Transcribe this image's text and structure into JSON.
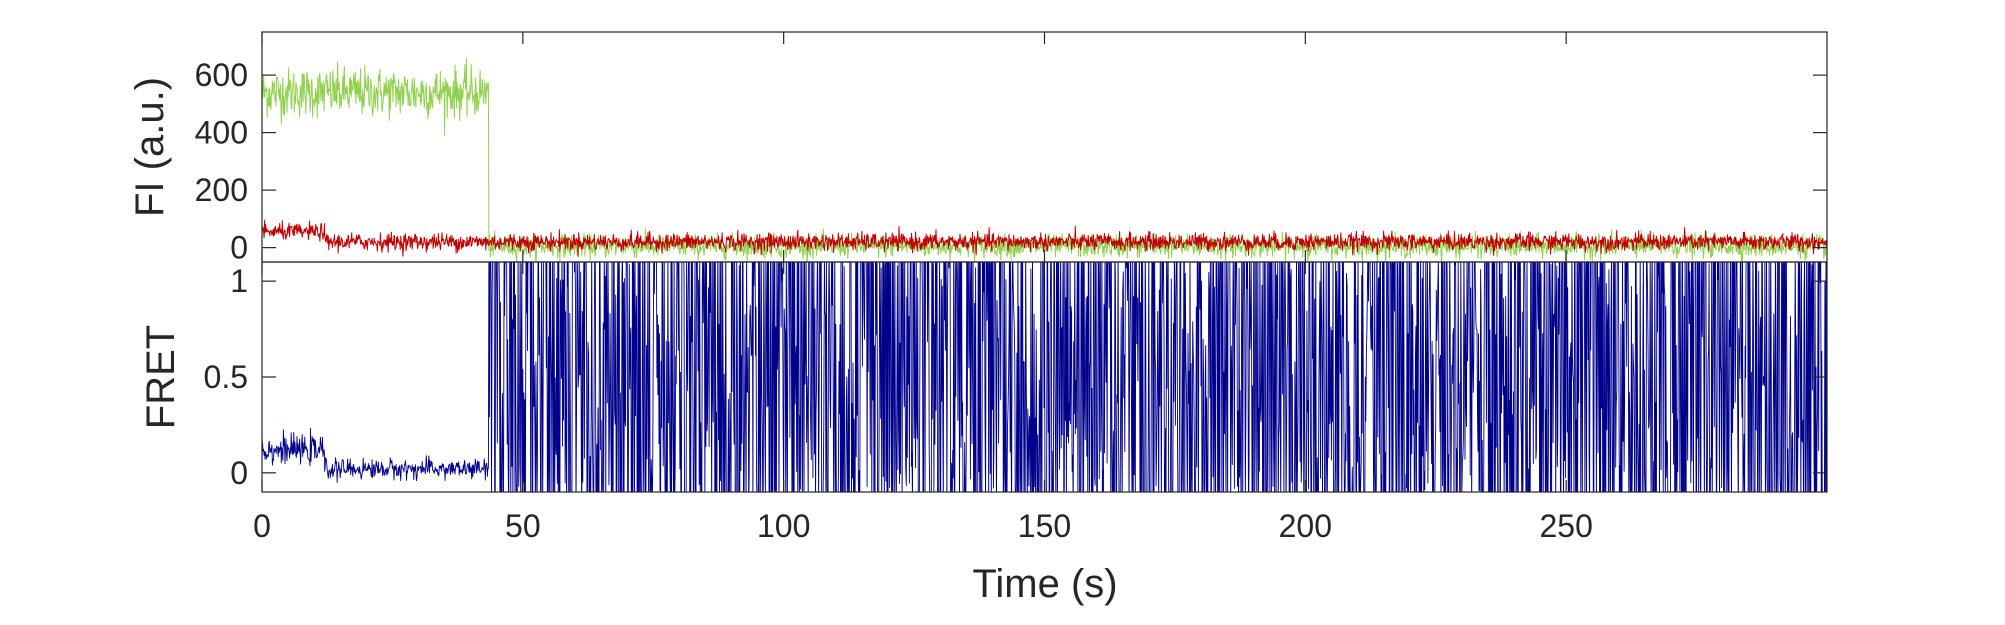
{
  "chart_data": [
    {
      "type": "line",
      "title": "",
      "xlabel": "",
      "ylabel": "FI (a.u.)",
      "xlim": [
        0,
        300
      ],
      "ylim": [
        -50,
        750
      ],
      "yticks": [
        0,
        200,
        400,
        600
      ],
      "ytick_labels": [
        "0",
        "200",
        "400",
        "600"
      ],
      "grid": false,
      "sampling_interval_s": 0.1,
      "series": [
        {
          "color": "#92d050",
          "segments": [
            {
              "x_start": 0,
              "x_end": 43.5,
              "mean": 540,
              "noise": 85
            },
            {
              "x_start": 43.5,
              "x_end": 300,
              "mean": 5,
              "noise": 38
            }
          ]
        },
        {
          "color": "#c00000",
          "segments": [
            {
              "x_start": 0,
              "x_end": 12,
              "mean": 55,
              "noise": 28
            },
            {
              "x_start": 12,
              "x_end": 300,
              "mean": 20,
              "noise": 30
            }
          ]
        }
      ]
    },
    {
      "type": "line",
      "title": "",
      "xlabel": "Time (s)",
      "ylabel": "FRET",
      "xlim": [
        0,
        300
      ],
      "ylim": [
        -0.1,
        1.1
      ],
      "yticks": [
        0,
        0.5,
        1
      ],
      "ytick_labels": [
        "0",
        "0.5",
        "1"
      ],
      "xticks": [
        0,
        50,
        100,
        150,
        200,
        250
      ],
      "xtick_labels": [
        "0",
        "50",
        "100",
        "150",
        "200",
        "250"
      ],
      "grid": false,
      "series": [
        {
          "color": "#00008b",
          "segments": [
            {
              "x_start": 0,
              "x_end": 12,
              "mean": 0.12,
              "noise": 0.07
            },
            {
              "x_start": 12,
              "x_end": 43.5,
              "mean": 0.02,
              "noise": 0.05
            },
            {
              "x_start": 43.5,
              "x_end": 300,
              "mean": 0.5,
              "noise": 0.6
            }
          ]
        }
      ]
    }
  ]
}
